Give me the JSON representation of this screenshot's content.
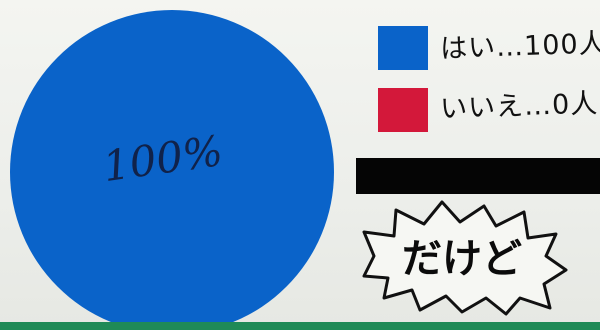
{
  "chart_data": {
    "type": "pie",
    "series": [
      {
        "name": "はい",
        "value": 100,
        "color": "#0a63c9"
      },
      {
        "name": "いいえ",
        "value": 0,
        "color": "#d3183a"
      }
    ],
    "center_label": "100%",
    "legend": [
      {
        "label": "はい…100人",
        "color": "#0a63c9"
      },
      {
        "label": "いいえ…0人",
        "color": "#d3183a"
      }
    ],
    "legend_placement": "right"
  },
  "callout": {
    "text": "だけど"
  }
}
